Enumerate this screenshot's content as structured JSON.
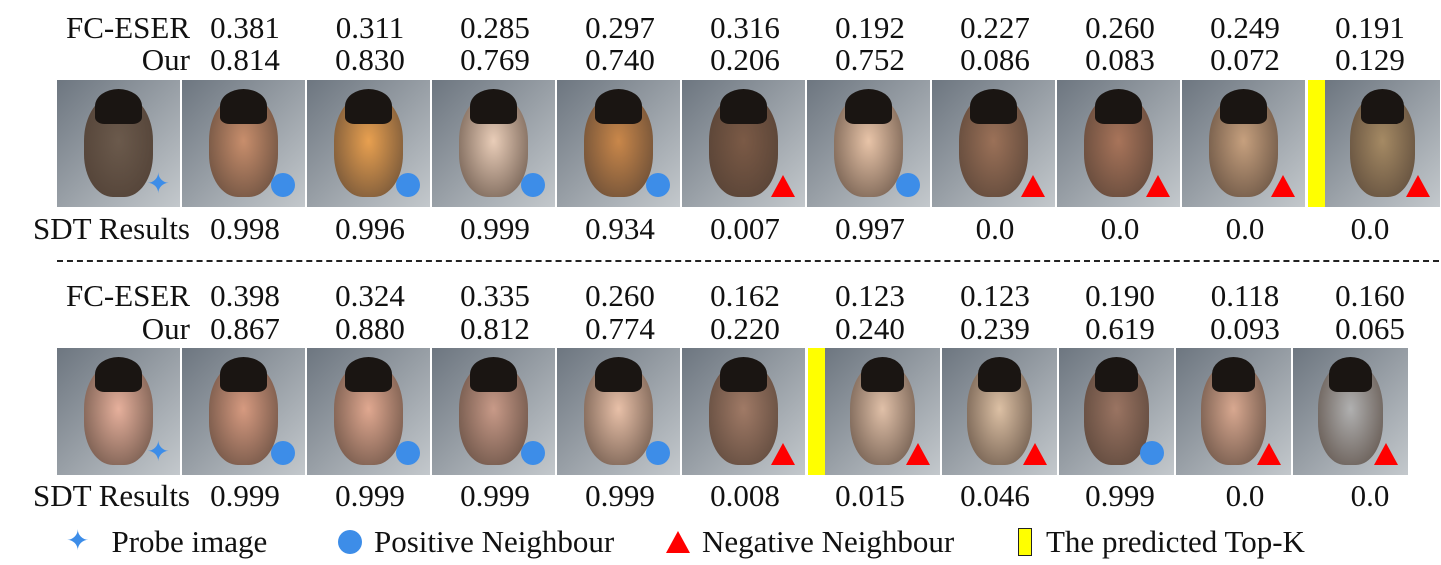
{
  "colors": {
    "positive": "#3d8de8",
    "negative": "#ff0000",
    "topk": "#ffff00"
  },
  "labels": {
    "fc": "FC-ESER",
    "our": "Our",
    "sdt": "SDT Results"
  },
  "rows": [
    {
      "fc": [
        "0.381",
        "0.311",
        "0.285",
        "0.297",
        "0.316",
        "0.192",
        "0.227",
        "0.260",
        "0.249",
        "0.191"
      ],
      "our": [
        "0.814",
        "0.830",
        "0.769",
        "0.740",
        "0.206",
        "0.752",
        "0.086",
        "0.083",
        "0.072",
        "0.129"
      ],
      "sdt": [
        "0.998",
        "0.996",
        "0.999",
        "0.934",
        "0.007",
        "0.997",
        "0.0",
        "0.0",
        "0.0",
        "0.0"
      ],
      "markers": [
        "probe",
        "pos",
        "pos",
        "pos",
        "pos",
        "neg",
        "pos",
        "neg",
        "neg",
        "neg",
        "neg"
      ],
      "topk_after": 9,
      "tones": [
        "#6b5a4c",
        "#c88e6c",
        "#e8a050",
        "#e9cdb8",
        "#c9874a",
        "#7b5a46",
        "#e8c4a8",
        "#9b7158",
        "#a8745a",
        "#c6a07e",
        "#a58a64"
      ]
    },
    {
      "fc": [
        "0.398",
        "0.324",
        "0.335",
        "0.260",
        "0.162",
        "0.123",
        "0.123",
        "0.190",
        "0.118",
        "0.160"
      ],
      "our": [
        "0.867",
        "0.880",
        "0.812",
        "0.774",
        "0.220",
        "0.240",
        "0.239",
        "0.619",
        "0.093",
        "0.065"
      ],
      "sdt": [
        "0.999",
        "0.999",
        "0.999",
        "0.999",
        "0.008",
        "0.015",
        "0.046",
        "0.999",
        "0.0",
        "0.0"
      ],
      "markers": [
        "probe",
        "pos",
        "pos",
        "pos",
        "pos",
        "neg",
        "neg",
        "neg",
        "pos",
        "neg",
        "neg"
      ],
      "topk_after": 5,
      "tones": [
        "#e6b09c",
        "#d69a80",
        "#e0a890",
        "#c89a88",
        "#e8c0a8",
        "#a07a66",
        "#e0c0a8",
        "#dcc0a4",
        "#9a7462",
        "#d8a890",
        "#b0b0b0"
      ]
    }
  ],
  "legend": {
    "probe": "Probe image",
    "positive": "Positive Neighbour",
    "negative": "Negative Neighbour",
    "topk": "The predicted Top-K"
  }
}
